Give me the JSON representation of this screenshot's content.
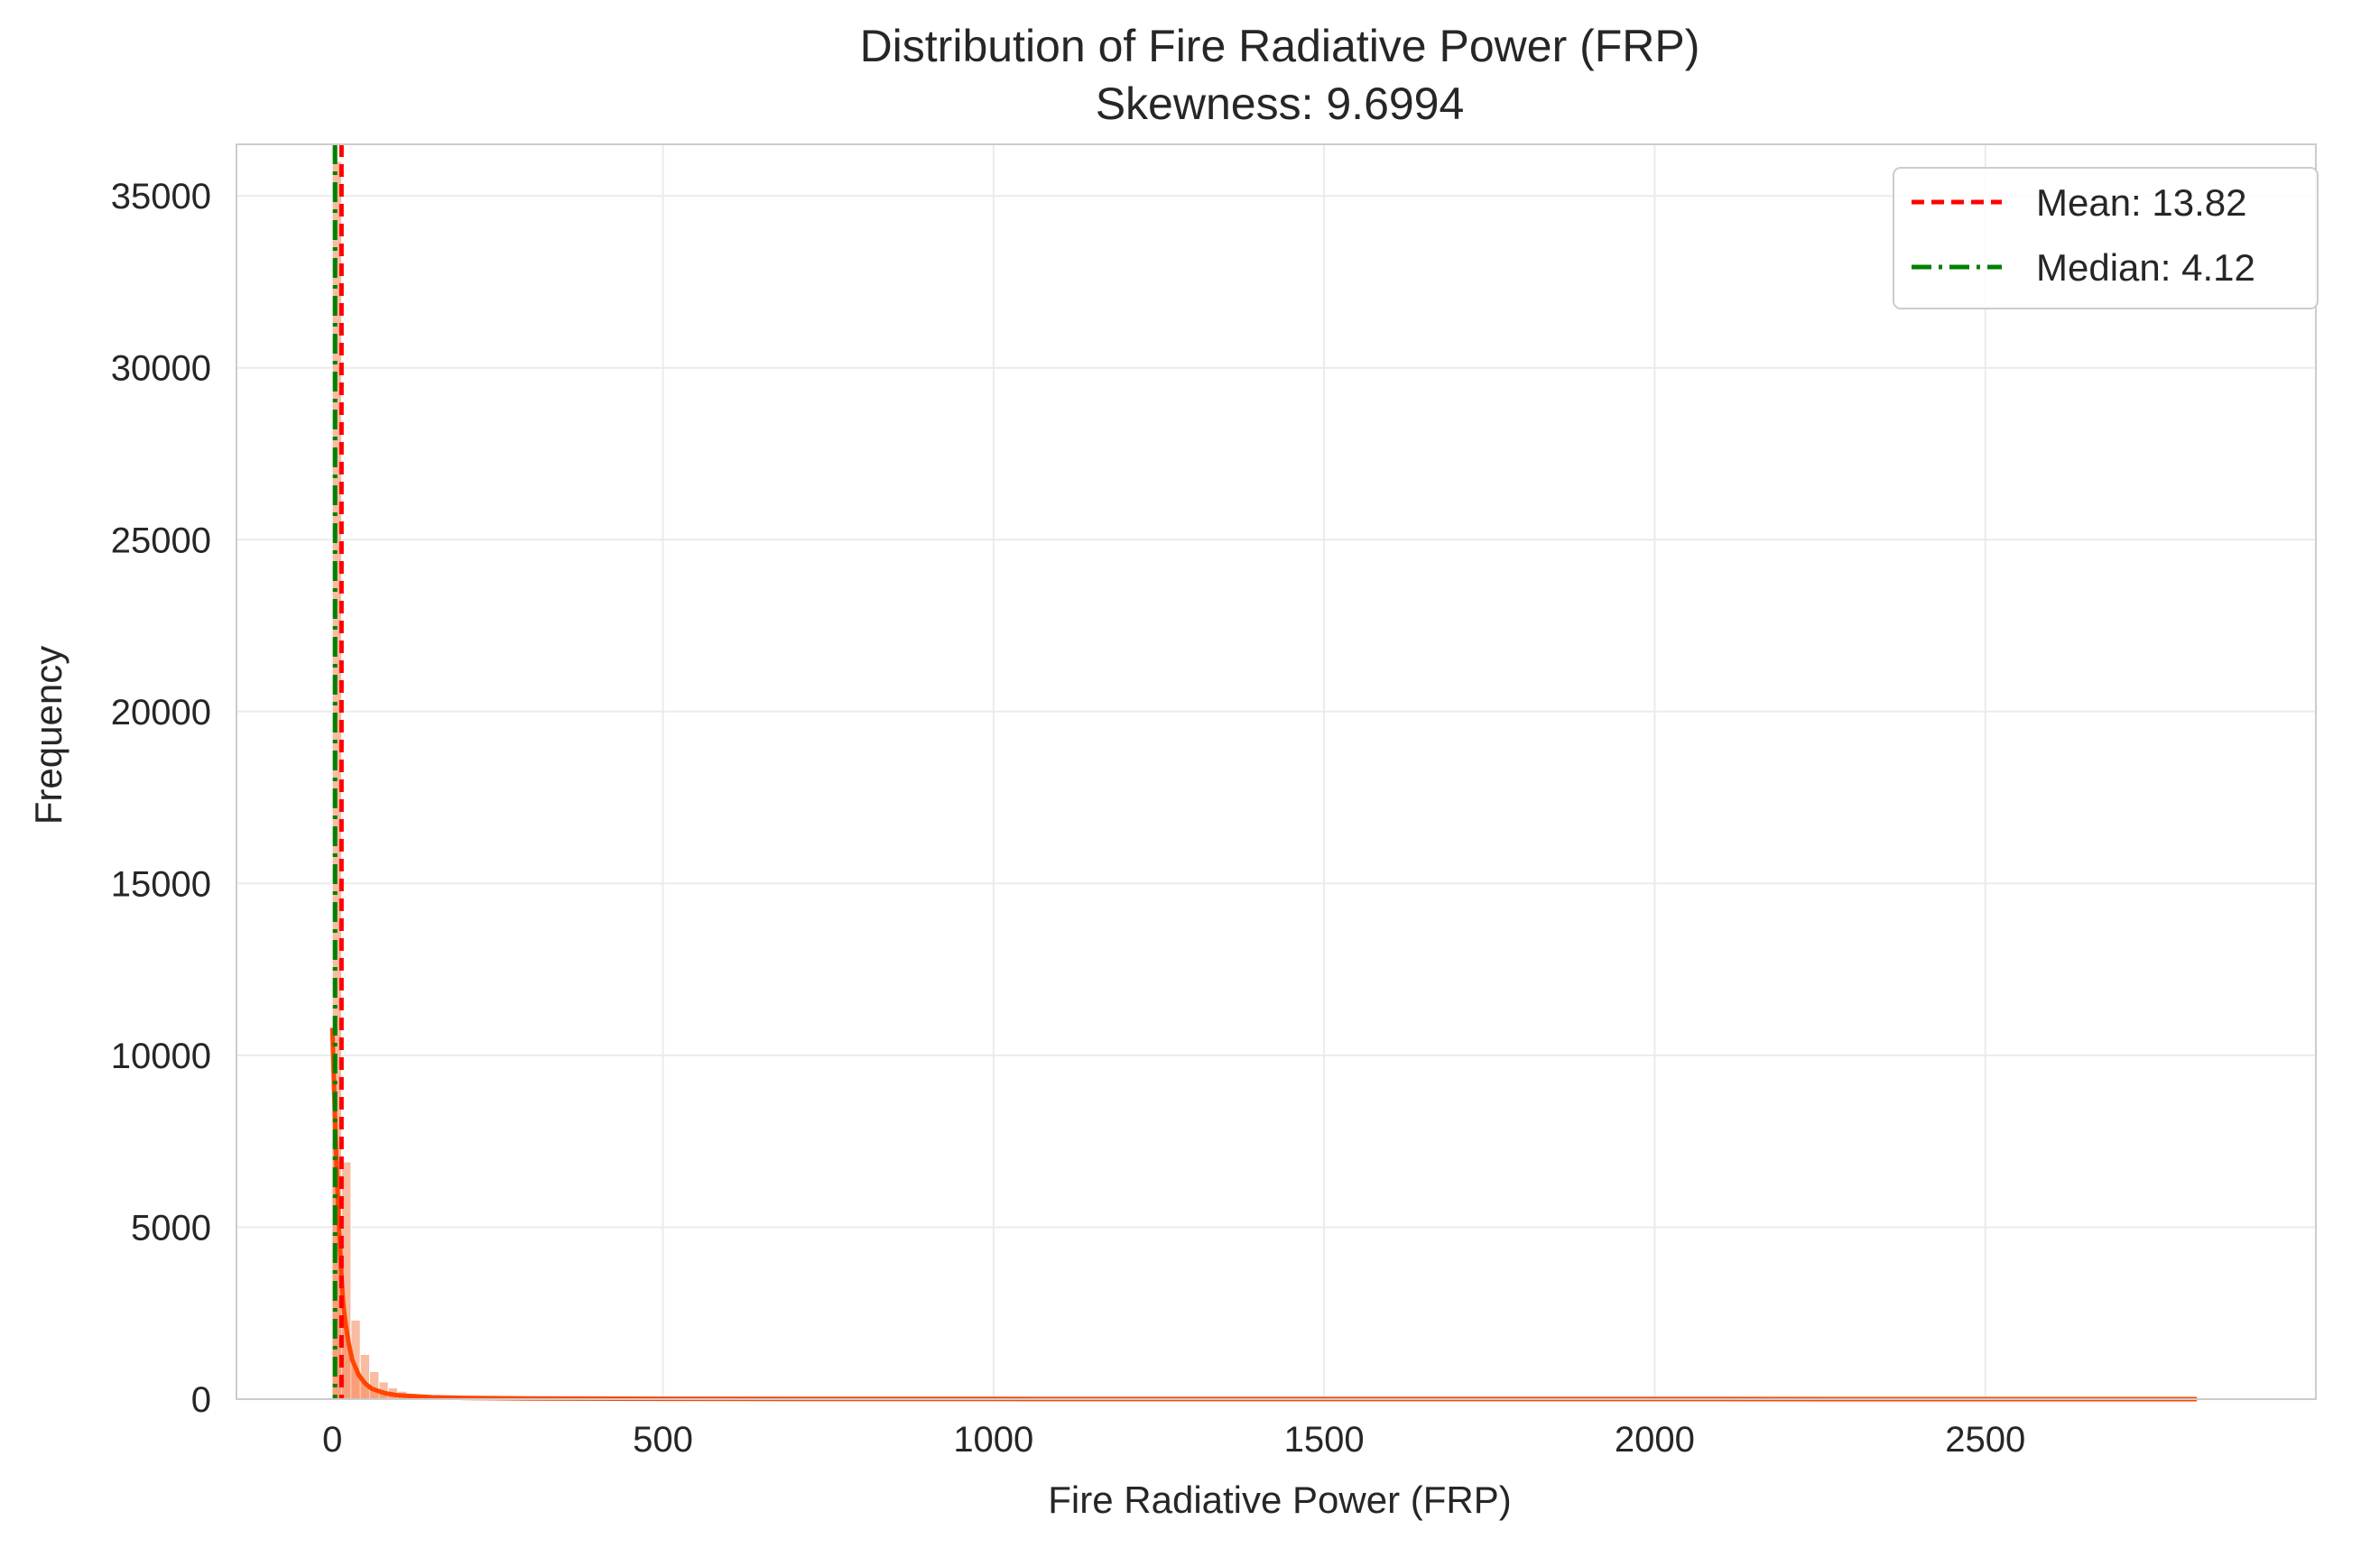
{
  "chart_data": {
    "type": "histogram",
    "title": "Distribution of Fire Radiative Power (FRP)",
    "subtitle": "Skewness: 9.6994",
    "xlabel": "Fire Radiative Power (FRP)",
    "ylabel": "Frequency",
    "xlim": [
      -145,
      3000
    ],
    "ylim": [
      0,
      36500
    ],
    "x_ticks": [
      0,
      500,
      1000,
      1500,
      2000,
      2500
    ],
    "y_ticks": [
      0,
      5000,
      10000,
      15000,
      20000,
      25000,
      30000,
      35000
    ],
    "grid": true,
    "legend_position": "top-right",
    "legend": [
      {
        "label": "Mean: 13.82",
        "color": "#ff0000",
        "style": "dashed"
      },
      {
        "label": "Median: 4.12",
        "color": "#008000",
        "style": "dashdot"
      }
    ],
    "mean": 13.82,
    "median": 4.12,
    "bar_color": "#f4a582",
    "kde_color": "#ff4500",
    "histogram": {
      "bin_start": 0,
      "bin_width": 14.1,
      "counts": [
        36000,
        6900,
        2300,
        1300,
        800,
        500,
        330,
        230,
        170,
        130,
        100,
        80,
        65,
        55,
        45,
        38,
        32,
        28,
        24,
        20,
        17,
        15,
        13,
        11,
        10,
        9,
        8,
        7,
        6,
        5
      ]
    },
    "kde": {
      "x": [
        0,
        2,
        4,
        6,
        8,
        10,
        12,
        14,
        16,
        18,
        20,
        25,
        30,
        40,
        50,
        60,
        80,
        100,
        150,
        200,
        300,
        500,
        1000,
        1500,
        2000,
        2500,
        2820
      ],
      "y": [
        10800,
        9500,
        8200,
        7000,
        6000,
        5100,
        4300,
        3500,
        2900,
        2500,
        2200,
        1600,
        1150,
        700,
        450,
        300,
        170,
        110,
        55,
        35,
        20,
        10,
        5,
        3,
        2,
        1,
        0
      ]
    }
  }
}
